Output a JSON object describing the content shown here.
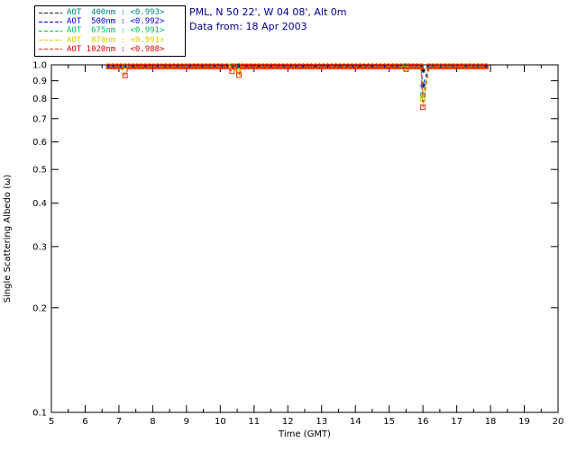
{
  "header": {
    "line1": "PML, N 50 22', W 04 08', Alt 0m",
    "line2": "Data from: 18 Apr 2003",
    "color": "#000090"
  },
  "chart_data": {
    "type": "line",
    "title": "",
    "xlabel": "Time (GMT)",
    "ylabel": "Single Scattering Albedo (ω)",
    "xlim": [
      5,
      20
    ],
    "ylim": [
      0.1,
      1.0
    ],
    "yscale": "log",
    "grid": false,
    "legend_position": "top-left",
    "xticks": [
      5,
      6,
      7,
      8,
      9,
      10,
      11,
      12,
      13,
      14,
      15,
      16,
      17,
      18,
      19,
      20
    ],
    "yticks": [
      0.1,
      0.2,
      0.3,
      0.4,
      0.5,
      0.6,
      0.7,
      0.8,
      0.9,
      1.0
    ],
    "sampling": {
      "start": 6.7,
      "end": 17.9,
      "step": 0.12
    },
    "series": [
      {
        "name": "AOT 400nm",
        "label": "AOT  400nm : <0.993>",
        "mean": 0.993,
        "baseline": 0.993,
        "line_color": "#1c1c1c",
        "text_color": "#008080",
        "marker": "asterisk"
      },
      {
        "name": "AOT 500nm",
        "label": "AOT  500nm : <0.992>",
        "mean": 0.992,
        "baseline": 0.992,
        "line_color": "#0000cc",
        "text_color": "#0000cc",
        "marker": "asterisk"
      },
      {
        "name": "AOT 675nm",
        "label": "AOT  675nm : <0.991>",
        "mean": 0.991,
        "baseline": 0.991,
        "line_color": "#00b050",
        "text_color": "#00c060",
        "marker": "square"
      },
      {
        "name": "AOT 870nm",
        "label": "AOT  870nm : <0.991>",
        "mean": 0.991,
        "baseline": 0.991,
        "line_color": "#ddcc00",
        "text_color": "#ddcc00",
        "marker": "square"
      },
      {
        "name": "AOT 1020nm",
        "label": "AOT 1020nm : <0.988>",
        "mean": 0.988,
        "baseline": 0.988,
        "line_color": "#e03000",
        "text_color": "#e00000",
        "marker": "square"
      }
    ],
    "anomalies": [
      {
        "t": 7.18,
        "values": {
          "AOT 1020nm": 0.932
        }
      },
      {
        "t": 10.35,
        "values": {
          "AOT 1020nm": 0.958
        }
      },
      {
        "t": 10.55,
        "values": {
          "AOT 1020nm": 0.934,
          "AOT 870nm": 0.952
        }
      },
      {
        "t": 15.5,
        "values": {
          "AOT 1020nm": 0.972,
          "AOT 870nm": 0.976
        }
      },
      {
        "t": 16.0,
        "values": {
          "AOT 400nm": 0.963,
          "AOT 500nm": 0.872,
          "AOT 675nm": 0.818,
          "AOT 870nm": 0.8,
          "AOT 1020nm": 0.755
        }
      }
    ]
  }
}
